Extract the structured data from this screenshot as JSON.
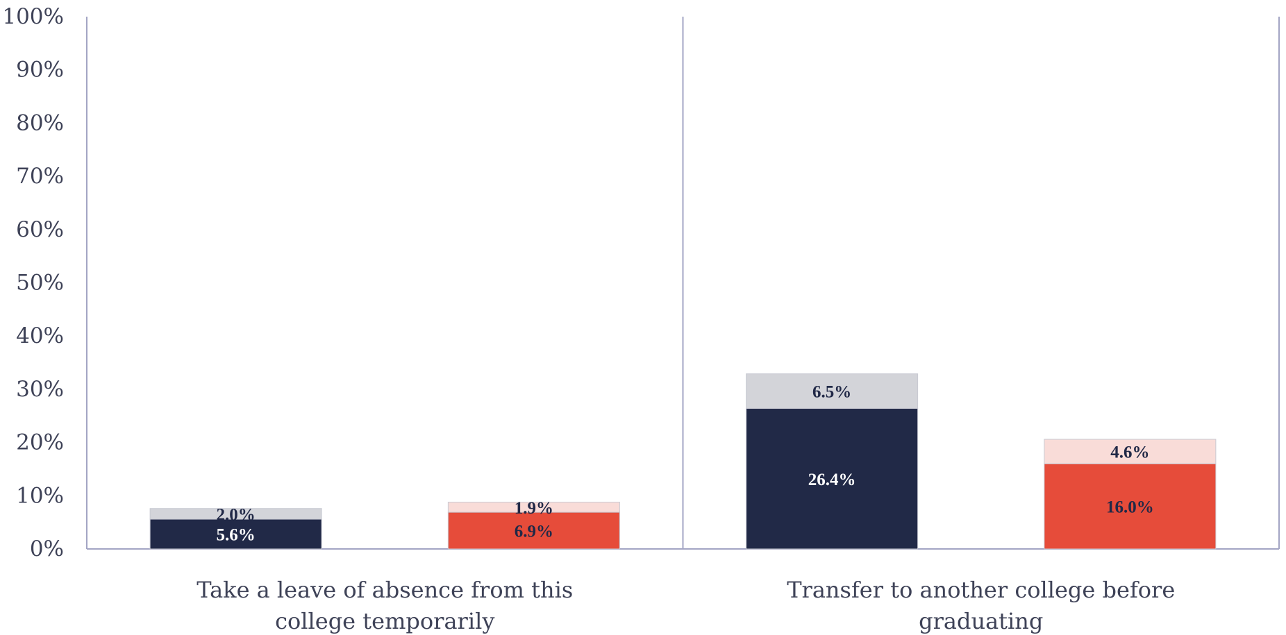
{
  "chart_data": {
    "type": "bar",
    "stacked": true,
    "ylim": [
      0,
      100
    ],
    "y_ticks": [
      "0%",
      "10%",
      "20%",
      "30%",
      "40%",
      "50%",
      "60%",
      "70%",
      "80%",
      "90%",
      "100%"
    ],
    "categories": [
      [
        "Take a leave of absence from this",
        "college temporarily"
      ],
      [
        "Transfer to another college before",
        "graduating"
      ]
    ],
    "groups": [
      {
        "bars": [
          {
            "segments": [
              {
                "value": 5.6,
                "label": "5.6%",
                "color": "#212947",
                "text_color": "#ffffff"
              },
              {
                "value": 2.0,
                "label": "2.0%",
                "color": "#d3d4d9",
                "text_color": "#212947"
              }
            ]
          },
          {
            "segments": [
              {
                "value": 6.9,
                "label": "6.9%",
                "color": "#e64c3a",
                "text_color": "#212947"
              },
              {
                "value": 1.9,
                "label": "1.9%",
                "color": "#f9dcd8",
                "text_color": "#212947"
              }
            ]
          }
        ]
      },
      {
        "bars": [
          {
            "segments": [
              {
                "value": 26.4,
                "label": "26.4%",
                "color": "#212947",
                "text_color": "#ffffff"
              },
              {
                "value": 6.5,
                "label": "6.5%",
                "color": "#d3d4d9",
                "text_color": "#212947"
              }
            ]
          },
          {
            "segments": [
              {
                "value": 16.0,
                "label": "16.0%",
                "color": "#e64c3a",
                "text_color": "#212947"
              },
              {
                "value": 4.6,
                "label": "4.6%",
                "color": "#f9dcd8",
                "text_color": "#212947"
              }
            ]
          }
        ]
      }
    ],
    "axis_color": "#a3a5c4",
    "grid": false
  }
}
